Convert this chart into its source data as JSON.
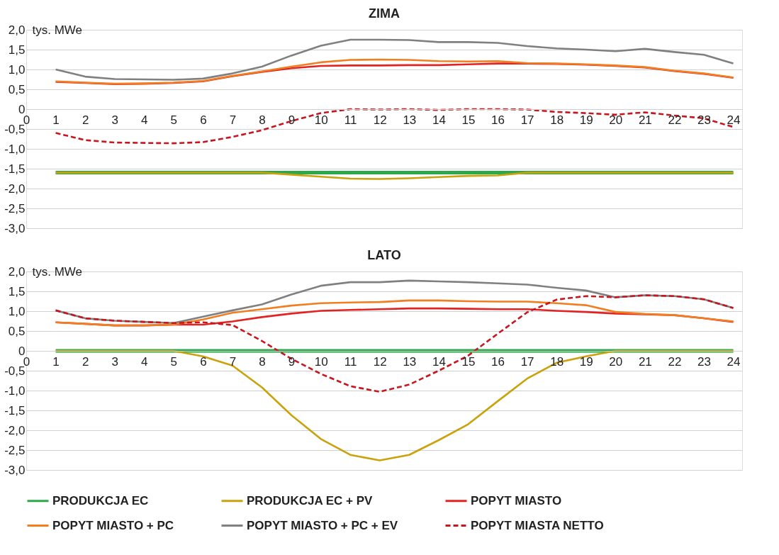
{
  "chart_data": [
    {
      "type": "line",
      "title": "ZIMA",
      "ylabel": "tys. MWe",
      "x": [
        1,
        2,
        3,
        4,
        5,
        6,
        7,
        8,
        9,
        10,
        11,
        12,
        13,
        14,
        15,
        16,
        17,
        18,
        19,
        20,
        21,
        22,
        23,
        24
      ],
      "xlim": [
        0,
        24.3
      ],
      "xticks": [
        0,
        1,
        2,
        3,
        4,
        5,
        6,
        7,
        8,
        9,
        10,
        11,
        12,
        13,
        14,
        15,
        16,
        17,
        18,
        19,
        20,
        21,
        22,
        23,
        24
      ],
      "ylim": [
        -3,
        2
      ],
      "yticks": [
        {
          "value": 2,
          "label": "2,0"
        },
        {
          "value": 1.5,
          "label": "1,5"
        },
        {
          "value": 1,
          "label": "1,0"
        },
        {
          "value": 0.5,
          "label": "0,5"
        },
        {
          "value": 0,
          "label": "0"
        },
        {
          "value": -0.5,
          "label": "-0,5"
        },
        {
          "value": -1,
          "label": "-1,0"
        },
        {
          "value": -1.5,
          "label": "-1,5"
        },
        {
          "value": -2,
          "label": "-2,0"
        },
        {
          "value": -2.5,
          "label": "-2,5"
        },
        {
          "value": -3,
          "label": "-3,0"
        }
      ],
      "grid": "y",
      "legend": "bottom",
      "series": [
        {
          "name": "PRODUKCJA EC",
          "color": "#2aa84a",
          "values": [
            -1.6,
            -1.6,
            -1.6,
            -1.6,
            -1.6,
            -1.6,
            -1.6,
            -1.6,
            -1.6,
            -1.6,
            -1.6,
            -1.6,
            -1.6,
            -1.6,
            -1.6,
            -1.6,
            -1.6,
            -1.6,
            -1.6,
            -1.6,
            -1.6,
            -1.6,
            -1.6,
            -1.6
          ]
        },
        {
          "name": "PRODUKCJA EC + PV",
          "color": "#c9a20c",
          "values": [
            -1.6,
            -1.6,
            -1.6,
            -1.6,
            -1.6,
            -1.6,
            -1.6,
            -1.6,
            -1.65,
            -1.7,
            -1.75,
            -1.76,
            -1.74,
            -1.71,
            -1.68,
            -1.67,
            -1.6,
            -1.6,
            -1.6,
            -1.6,
            -1.6,
            -1.6,
            -1.6,
            -1.6
          ]
        },
        {
          "name": "POPYT MIASTO",
          "color": "#e32322",
          "values": [
            0.69,
            0.66,
            0.63,
            0.64,
            0.66,
            0.7,
            0.83,
            0.94,
            1.03,
            1.09,
            1.1,
            1.1,
            1.11,
            1.11,
            1.13,
            1.15,
            1.15,
            1.14,
            1.12,
            1.09,
            1.05,
            0.96,
            0.89,
            0.79
          ]
        },
        {
          "name": "POPYT MIASTO + PC",
          "color": "#f07f22",
          "values": [
            0.7,
            0.67,
            0.64,
            0.65,
            0.67,
            0.71,
            0.84,
            0.95,
            1.07,
            1.18,
            1.24,
            1.25,
            1.24,
            1.21,
            1.2,
            1.21,
            1.16,
            1.15,
            1.13,
            1.1,
            1.06,
            0.97,
            0.9,
            0.8
          ]
        },
        {
          "name": "POPYT MIASTO + PC + EV",
          "color": "#808080",
          "values": [
            1.0,
            0.82,
            0.76,
            0.75,
            0.74,
            0.77,
            0.9,
            1.07,
            1.35,
            1.6,
            1.75,
            1.75,
            1.74,
            1.69,
            1.69,
            1.67,
            1.59,
            1.53,
            1.5,
            1.46,
            1.52,
            1.44,
            1.37,
            1.15
          ]
        },
        {
          "name": "POPYT MIASTA NETTO",
          "color": "#c8161e",
          "line_style": "dashed",
          "values": [
            -0.6,
            -0.78,
            -0.84,
            -0.85,
            -0.86,
            -0.83,
            -0.7,
            -0.53,
            -0.3,
            -0.1,
            0,
            -0.01,
            0,
            -0.02,
            0,
            0,
            -0.01,
            -0.07,
            -0.1,
            -0.14,
            -0.08,
            -0.16,
            -0.23,
            -0.45
          ]
        }
      ]
    },
    {
      "type": "line",
      "title": "LATO",
      "ylabel": "tys. MWe",
      "x": [
        1,
        2,
        3,
        4,
        5,
        6,
        7,
        8,
        9,
        10,
        11,
        12,
        13,
        14,
        15,
        16,
        17,
        18,
        19,
        20,
        21,
        22,
        23,
        24
      ],
      "xlim": [
        0,
        24.3
      ],
      "xticks": [
        0,
        1,
        2,
        3,
        4,
        5,
        6,
        7,
        8,
        9,
        10,
        11,
        12,
        13,
        14,
        15,
        16,
        17,
        18,
        19,
        20,
        21,
        22,
        23,
        24
      ],
      "ylim": [
        -3,
        2
      ],
      "yticks": [
        {
          "value": 2,
          "label": "2,0"
        },
        {
          "value": 1.5,
          "label": "1,5"
        },
        {
          "value": 1,
          "label": "1,0"
        },
        {
          "value": 0.5,
          "label": "0,5"
        },
        {
          "value": 0,
          "label": "0"
        },
        {
          "value": -0.5,
          "label": "-0,5"
        },
        {
          "value": -1,
          "label": "-1,0"
        },
        {
          "value": -1.5,
          "label": "-1,5"
        },
        {
          "value": -2,
          "label": "-2,0"
        },
        {
          "value": -2.5,
          "label": "-2,5"
        },
        {
          "value": -3,
          "label": "-3,0"
        }
      ],
      "grid": "y",
      "legend": "bottom",
      "series": [
        {
          "name": "PRODUKCJA EC",
          "color": "#2aa84a",
          "values": [
            0,
            0,
            0,
            0,
            0,
            0,
            0,
            0,
            0,
            0,
            0,
            0,
            0,
            0,
            0,
            0,
            0,
            0,
            0,
            0,
            0,
            0,
            0,
            0
          ]
        },
        {
          "name": "PRODUKCJA EC + PV",
          "color": "#c9a20c",
          "values": [
            0,
            0,
            0,
            0,
            0,
            -0.14,
            -0.37,
            -0.92,
            -1.62,
            -2.22,
            -2.62,
            -2.76,
            -2.62,
            -2.25,
            -1.85,
            -1.27,
            -0.7,
            -0.3,
            -0.14,
            0,
            0,
            0,
            0,
            0
          ]
        },
        {
          "name": "POPYT MIASTO",
          "color": "#e32322",
          "values": [
            0.72,
            0.68,
            0.64,
            0.64,
            0.66,
            0.66,
            0.74,
            0.85,
            0.94,
            1.01,
            1.03,
            1.05,
            1.07,
            1.07,
            1.06,
            1.05,
            1.05,
            1.01,
            0.98,
            0.94,
            0.92,
            0.9,
            0.82,
            0.73
          ]
        },
        {
          "name": "POPYT MIASTO + PC",
          "color": "#f07f22",
          "values": [
            0.72,
            0.68,
            0.64,
            0.64,
            0.66,
            0.79,
            0.96,
            1.05,
            1.14,
            1.2,
            1.22,
            1.23,
            1.27,
            1.27,
            1.25,
            1.24,
            1.24,
            1.2,
            1.15,
            0.98,
            0.93,
            0.9,
            0.82,
            0.74
          ]
        },
        {
          "name": "POPYT MIASTO + PC + EV",
          "color": "#808080",
          "values": [
            1.02,
            0.82,
            0.76,
            0.73,
            0.7,
            0.86,
            1.02,
            1.17,
            1.42,
            1.64,
            1.73,
            1.73,
            1.77,
            1.75,
            1.73,
            1.7,
            1.67,
            1.59,
            1.52,
            1.35,
            1.4,
            1.38,
            1.3,
            1.08
          ]
        },
        {
          "name": "POPYT MIASTA NETTO",
          "color": "#c8161e",
          "line_style": "dashed",
          "values": [
            1.02,
            0.82,
            0.76,
            0.73,
            0.7,
            0.72,
            0.65,
            0.25,
            -0.2,
            -0.58,
            -0.89,
            -1.03,
            -0.85,
            -0.5,
            -0.12,
            0.43,
            0.97,
            1.29,
            1.38,
            1.35,
            1.4,
            1.38,
            1.3,
            1.08
          ]
        }
      ]
    }
  ]
}
